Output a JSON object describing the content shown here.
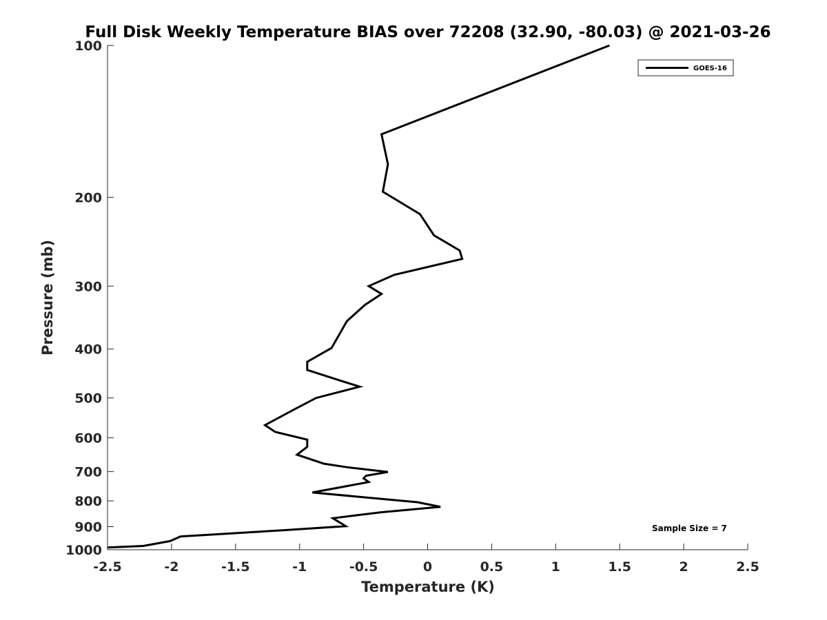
{
  "chart_data": {
    "type": "line",
    "title": "Full Disk Weekly Temperature BIAS over 72208 (32.90, -80.03) @ 2021-03-26",
    "xlabel": "Temperature (K)",
    "ylabel": "Pressure (mb)",
    "xlim": [
      -2.5,
      2.5
    ],
    "ylim": [
      100,
      1000
    ],
    "yscale": "log",
    "y_reversed": true,
    "grid": false,
    "x_ticks": [
      "-2.5",
      "-2",
      "-1.5",
      "-1",
      "-0.5",
      "0",
      "0.5",
      "1",
      "1.5",
      "2",
      "2.5"
    ],
    "y_ticks": [
      "100",
      "200",
      "300",
      "400",
      "500",
      "600",
      "700",
      "800",
      "900",
      "1000"
    ],
    "legend_position": "top-right",
    "annotation": "Sample Size = 7",
    "series": [
      {
        "name": "GOES-16",
        "color": "#000000",
        "x": [
          1.42,
          -0.36,
          -0.31,
          -0.35,
          -0.06,
          0.05,
          0.25,
          0.27,
          -0.26,
          -0.46,
          -0.36,
          -0.49,
          -0.63,
          -0.75,
          -0.94,
          -0.94,
          -0.67,
          -0.53,
          -0.87,
          -1.03,
          -1.27,
          -1.19,
          -0.94,
          -0.94,
          -1.02,
          -0.81,
          -0.63,
          -0.31,
          -0.48,
          -0.5,
          -0.46,
          -0.9,
          -0.08,
          0.1,
          -0.37,
          -0.74,
          -0.64,
          -1.1,
          -1.93,
          -2.01,
          -2.22,
          -2.5
        ],
        "y": [
          100,
          150,
          172,
          195,
          216,
          238,
          255,
          265,
          285,
          300,
          311,
          327,
          352,
          398,
          424,
          440,
          463,
          475,
          500,
          525,
          566,
          584,
          605,
          625,
          648,
          675,
          686,
          701,
          713,
          722,
          734,
          770,
          805,
          822,
          843,
          866,
          898,
          914,
          941,
          961,
          983,
          990
        ]
      }
    ]
  }
}
